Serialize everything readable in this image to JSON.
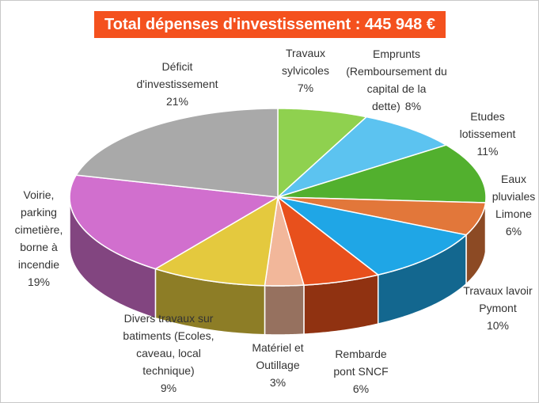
{
  "chart_data": {
    "type": "pie",
    "title": "Total dépenses d'investissement : 445 948 €",
    "categories": [
      "Travaux sylvicoles",
      "Emprunts (Remboursement du capital de la dette)",
      "Etudes lotissement",
      "Eaux pluviales Limone",
      "Travaux lavoir Pymont",
      "Rembarde pont SNCF",
      "Matériel et Outillage",
      "Divers travaux sur batiments (Ecoles, caveau, local technique)",
      "Voirie, parking cimetière, borne à incendie",
      "Déficit d'investissement"
    ],
    "values": [
      7,
      8,
      11,
      6,
      10,
      6,
      3,
      9,
      19,
      21
    ],
    "value_labels": [
      "7%",
      "8%",
      "11%",
      "6%",
      "10%",
      "6%",
      "3%",
      "9%",
      "19%",
      "21%"
    ],
    "colors": [
      "#8fd14f",
      "#5cc3f0",
      "#52b02e",
      "#e2773a",
      "#1fa6e6",
      "#e8501c",
      "#f2b79a",
      "#e4c93e",
      "#d16fce",
      "#a9a9a9"
    ]
  }
}
